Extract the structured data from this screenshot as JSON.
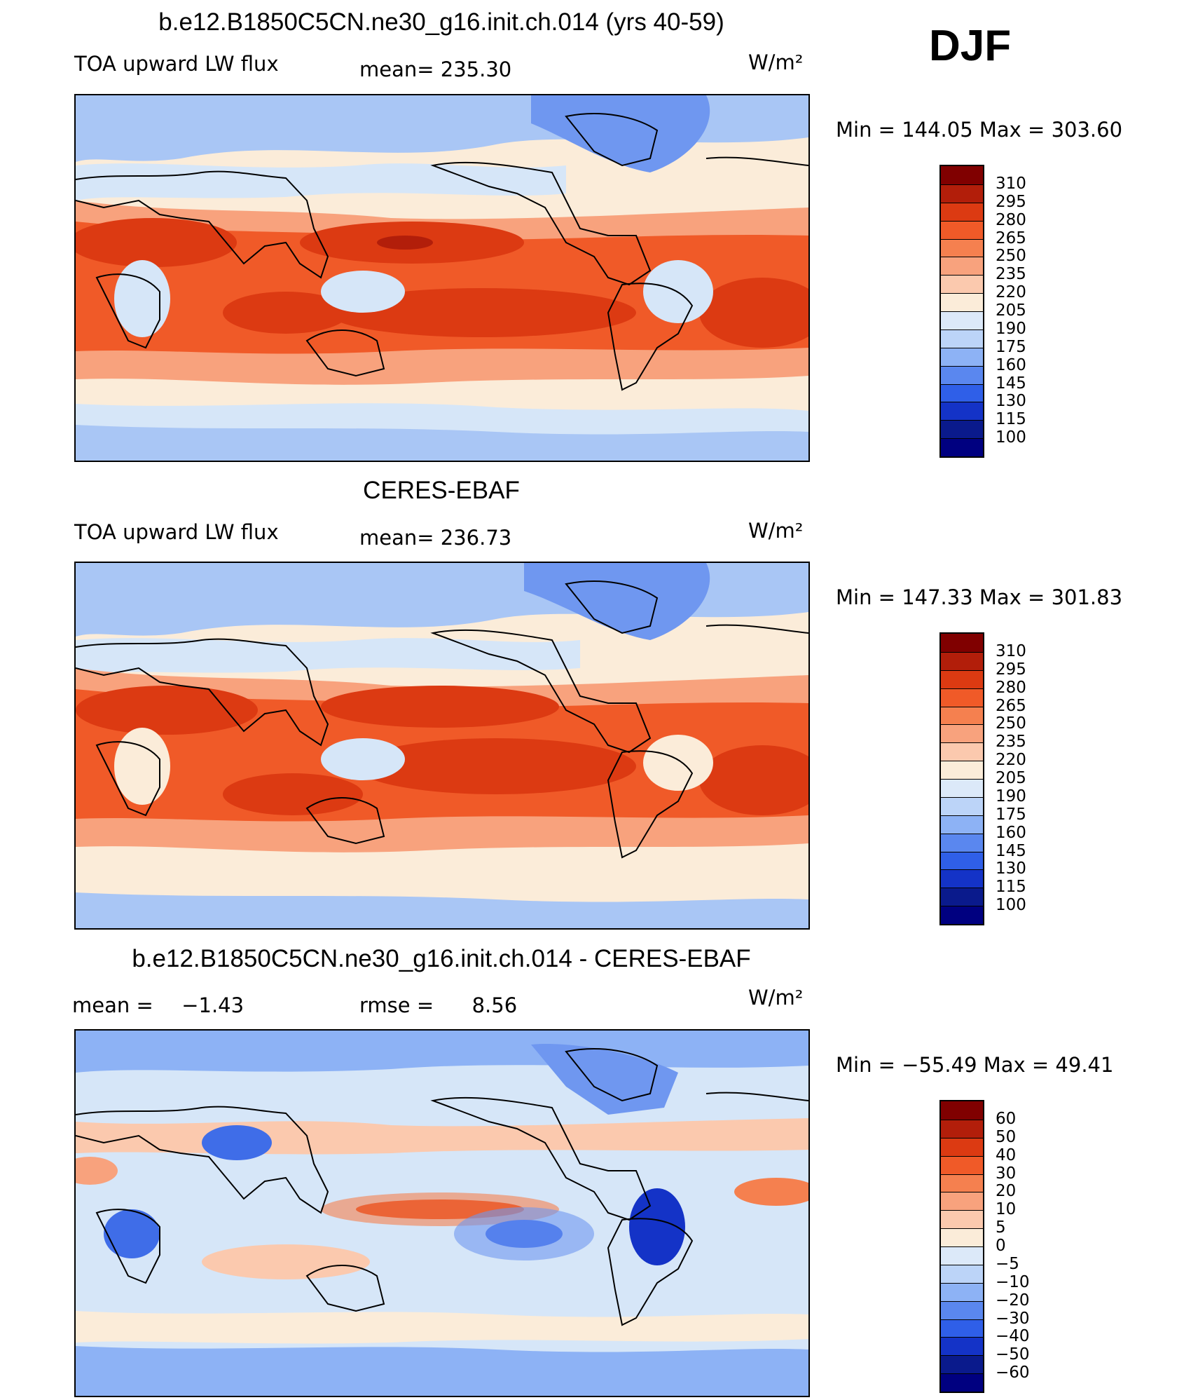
{
  "figure": {
    "season": "DJF",
    "units_label": "W/m²"
  },
  "panels": [
    {
      "title": "b.e12.B1850C5CN.ne30_g16.init.ch.014 (yrs 40-59)",
      "variable": "TOA upward LW flux",
      "stat_label": "mean=",
      "stat_value": "235.30",
      "units": "W/m²",
      "minmax": "Min  =  144.05  Max  =  303.60",
      "levels": [
        "310",
        "295",
        "280",
        "265",
        "250",
        "235",
        "220",
        "205",
        "190",
        "175",
        "160",
        "145",
        "130",
        "115",
        "100"
      ]
    },
    {
      "title": "CERES-EBAF",
      "variable": "TOA upward LW flux",
      "stat_label": "mean=",
      "stat_value": "236.73",
      "units": "W/m²",
      "minmax": "Min  =  147.33  Max  =  301.83",
      "levels": [
        "310",
        "295",
        "280",
        "265",
        "250",
        "235",
        "220",
        "205",
        "190",
        "175",
        "160",
        "145",
        "130",
        "115",
        "100"
      ]
    },
    {
      "title": "b.e12.B1850C5CN.ne30_g16.init.ch.014 - CERES-EBAF",
      "stat_label": "mean =",
      "stat_value": "−1.43",
      "stat2_label": "rmse =",
      "stat2_value": "8.56",
      "units": "W/m²",
      "minmax": "Min  =  −55.49  Max  =    49.41",
      "levels": [
        "60",
        "50",
        "40",
        "30",
        "20",
        "10",
        "5",
        "0",
        "−5",
        "−10",
        "−20",
        "−30",
        "−40",
        "−50",
        "−60"
      ]
    }
  ],
  "colorbar_colors": [
    "#800000",
    "#b21e0a",
    "#dc3a12",
    "#f05a28",
    "#f5804f",
    "#f8a27d",
    "#fbc9ae",
    "#fbecd9",
    "#dce9f9",
    "#bcd4f8",
    "#8db2f5",
    "#5a87ef",
    "#2f5fe8",
    "#1433c7",
    "#0a1a8c",
    "#000080"
  ],
  "colors": {
    "deep_red": "#b8270c",
    "red": "#dc3a12",
    "orange": "#f5804f",
    "salmon": "#f8a27d",
    "peach": "#fbc9ae",
    "cream": "#fbecd9",
    "pale_blue": "#d6e6f8",
    "light_blue": "#a9c6f5",
    "blue": "#6f97f0",
    "mid_blue": "#3f6de8",
    "dark_blue": "#1a3fd0",
    "coast": "#000000"
  }
}
